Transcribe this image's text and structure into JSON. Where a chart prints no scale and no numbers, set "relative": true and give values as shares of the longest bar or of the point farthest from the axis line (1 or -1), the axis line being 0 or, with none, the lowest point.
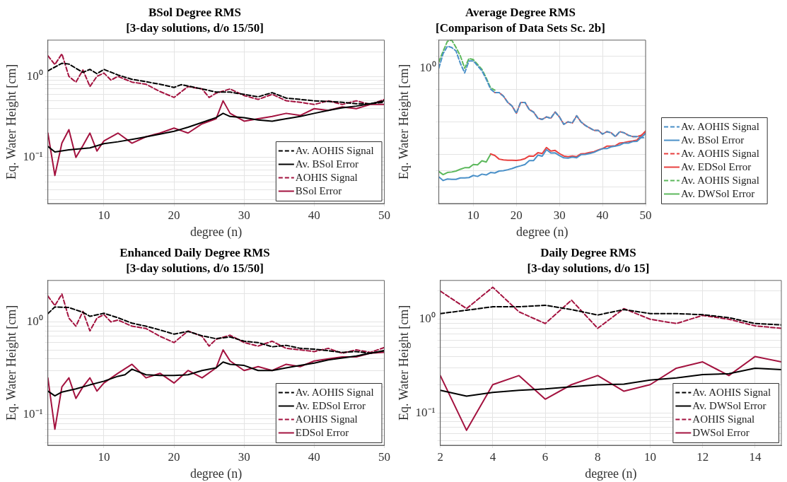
{
  "chart_data": [
    {
      "type": "line",
      "title": "BSol Degree RMS",
      "subtitle": "[3-day solutions, d/o 15/50]",
      "xlabel": "degree (n)",
      "ylabel": "Eq. Water Height [cm]",
      "log": "y",
      "grid": true,
      "legend": "bottom right",
      "xlim": [
        2,
        50
      ],
      "xticks": [
        10,
        20,
        30,
        40,
        50
      ],
      "ylim": [
        0.027,
        2.8
      ],
      "yticks": [
        {
          "value": 0.03,
          "label": null
        },
        {
          "value": 0.04,
          "label": null
        },
        {
          "value": 0.05,
          "label": null
        },
        {
          "value": 0.06,
          "label": null
        },
        {
          "value": 0.07,
          "label": null
        },
        {
          "value": 0.08,
          "label": null
        },
        {
          "value": 0.09,
          "label": null
        },
        {
          "value": 0.1,
          "label": "10⁻¹"
        },
        {
          "value": 0.2,
          "label": null
        },
        {
          "value": 0.3,
          "label": null
        },
        {
          "value": 0.4,
          "label": null
        },
        {
          "value": 0.5,
          "label": null
        },
        {
          "value": 0.6,
          "label": null
        },
        {
          "value": 0.7,
          "label": null
        },
        {
          "value": 0.8,
          "label": null
        },
        {
          "value": 0.9,
          "label": null
        },
        {
          "value": 1,
          "label": "10⁰"
        },
        {
          "value": 2,
          "label": null
        }
      ],
      "series": [
        {
          "name": "Av. AOHIS Signal",
          "color": "#000000",
          "line_style": "dashed",
          "x": [
            2,
            4,
            5,
            6,
            7,
            8,
            9,
            10,
            12,
            14,
            16,
            18,
            20,
            21,
            22,
            24,
            26,
            28,
            30,
            32,
            34,
            36,
            38,
            40,
            42,
            44,
            46,
            48,
            50
          ],
          "values": [
            1.17,
            1.45,
            1.42,
            1.26,
            1.12,
            1.22,
            1.08,
            1.22,
            1.04,
            0.92,
            0.86,
            0.8,
            0.73,
            0.79,
            0.76,
            0.7,
            0.64,
            0.64,
            0.6,
            0.56,
            0.63,
            0.54,
            0.52,
            0.5,
            0.49,
            0.48,
            0.46,
            0.46,
            0.48
          ]
        },
        {
          "name": "Av. BSol Error",
          "color": "#000000",
          "line_style": "solid",
          "x": [
            2,
            3,
            5,
            8,
            10,
            12,
            15,
            18,
            20,
            22,
            24,
            26,
            27,
            28,
            30,
            32,
            34,
            36,
            38,
            40,
            42,
            44,
            46,
            48,
            50
          ],
          "values": [
            0.137,
            0.117,
            0.124,
            0.131,
            0.148,
            0.156,
            0.173,
            0.194,
            0.21,
            0.236,
            0.27,
            0.31,
            0.35,
            0.32,
            0.31,
            0.29,
            0.28,
            0.3,
            0.32,
            0.35,
            0.38,
            0.41,
            0.43,
            0.46,
            0.5
          ]
        },
        {
          "name": "AOHIS Signal",
          "color": "#a3123f",
          "line_style": "dashed",
          "x": [
            2,
            3,
            4,
            5,
            6,
            7,
            8,
            9,
            10,
            11,
            12,
            14,
            16,
            18,
            20,
            22,
            24,
            25,
            26,
            28,
            30,
            32,
            34,
            36,
            38,
            40,
            42,
            44,
            46,
            48,
            50
          ],
          "values": [
            1.8,
            1.4,
            1.9,
            1.0,
            0.85,
            1.2,
            0.75,
            1.0,
            1.1,
            0.9,
            1.0,
            0.85,
            0.8,
            0.65,
            0.55,
            0.75,
            0.7,
            0.55,
            0.62,
            0.7,
            0.58,
            0.52,
            0.6,
            0.5,
            0.48,
            0.45,
            0.5,
            0.45,
            0.5,
            0.45,
            0.52
          ]
        },
        {
          "name": "BSol Error",
          "color": "#a3123f",
          "line_style": "solid",
          "x": [
            2,
            3,
            4,
            5,
            6,
            7,
            8,
            9,
            10,
            12,
            14,
            16,
            18,
            20,
            22,
            24,
            26,
            27,
            28,
            30,
            32,
            34,
            36,
            38,
            40,
            42,
            44,
            46,
            48,
            50
          ],
          "values": [
            0.2,
            0.06,
            0.15,
            0.22,
            0.1,
            0.14,
            0.2,
            0.12,
            0.16,
            0.2,
            0.15,
            0.18,
            0.2,
            0.23,
            0.2,
            0.26,
            0.3,
            0.5,
            0.35,
            0.28,
            0.3,
            0.32,
            0.35,
            0.33,
            0.4,
            0.38,
            0.42,
            0.4,
            0.45,
            0.45
          ]
        }
      ]
    },
    {
      "type": "line",
      "title": "Average Degree RMS",
      "subtitle": "[Comparison of Data Sets Sc. 2b]",
      "xlabel": "degree (n)",
      "ylabel": "Eq. Water Height [cm]",
      "grid": true,
      "legend": "right",
      "relative": true,
      "annotations": [
        "10⁰"
      ],
      "xlim": [
        2,
        50
      ],
      "xticks": [
        10,
        20,
        30,
        40,
        50
      ],
      "series": [
        {
          "name": "Av. AOHIS Signal",
          "color": "#4a90c8",
          "line_style": "dashed",
          "x": [
            2,
            3,
            4,
            5,
            6,
            7,
            8,
            9,
            10,
            11,
            12,
            13,
            14,
            15,
            16,
            17,
            18,
            19,
            20,
            21,
            22,
            23,
            24,
            25,
            26,
            27,
            28,
            29,
            30,
            31,
            32,
            33,
            34,
            35,
            36,
            37,
            38,
            39,
            40,
            41,
            42,
            43,
            44,
            45,
            46,
            47,
            48,
            49,
            50
          ],
          "values": [
            0.828,
            0.918,
            0.963,
            0.955,
            0.933,
            0.858,
            0.799,
            0.873,
            0.873,
            0.843,
            0.813,
            0.761,
            0.701,
            0.679,
            0.679,
            0.657,
            0.619,
            0.597,
            0.552,
            0.619,
            0.619,
            0.575,
            0.56,
            0.522,
            0.515,
            0.53,
            0.522,
            0.56,
            0.53,
            0.485,
            0.5,
            0.493,
            0.537,
            0.5,
            0.478,
            0.463,
            0.448,
            0.448,
            0.425,
            0.44,
            0.433,
            0.41,
            0.44,
            0.433,
            0.418,
            0.41,
            0.41,
            0.403,
            0.403
          ]
        },
        {
          "name": "Av. BSol Error",
          "color": "#4a90c8",
          "line_style": "solid",
          "x": [
            2,
            3,
            4,
            5,
            6,
            7,
            8,
            9,
            10,
            11,
            12,
            13,
            14,
            15,
            16,
            17,
            18,
            19,
            20,
            21,
            22,
            23,
            24,
            25,
            26,
            27,
            28,
            29,
            30,
            31,
            32,
            33,
            34,
            35,
            36,
            37,
            38,
            39,
            40,
            41,
            42,
            43,
            44,
            45,
            46,
            47,
            48,
            49,
            50
          ],
          "values": [
            0.163,
            0.141,
            0.15,
            0.148,
            0.148,
            0.157,
            0.157,
            0.159,
            0.172,
            0.166,
            0.18,
            0.175,
            0.19,
            0.187,
            0.199,
            0.201,
            0.207,
            0.214,
            0.224,
            0.231,
            0.239,
            0.263,
            0.263,
            0.296,
            0.29,
            0.33,
            0.309,
            0.31,
            0.294,
            0.28,
            0.278,
            0.284,
            0.28,
            0.299,
            0.301,
            0.306,
            0.313,
            0.325,
            0.336,
            0.336,
            0.347,
            0.351,
            0.358,
            0.37,
            0.37,
            0.379,
            0.381,
            0.404,
            0.429
          ]
        },
        {
          "name": "Av. AOHIS Signal",
          "color": "#e8403f",
          "line_style": "dashed",
          "x": [
            15,
            16,
            17,
            18,
            19,
            20,
            21,
            22,
            23,
            24,
            25,
            26,
            27,
            28,
            29,
            30,
            31,
            32,
            33,
            34,
            35,
            36,
            37,
            38,
            39,
            40,
            41,
            42,
            43,
            44,
            45,
            46,
            47,
            48,
            49,
            50
          ],
          "values": [
            0.679,
            0.679,
            0.657,
            0.619,
            0.597,
            0.552,
            0.619,
            0.619,
            0.575,
            0.56,
            0.522,
            0.515,
            0.53,
            0.522,
            0.56,
            0.53,
            0.485,
            0.5,
            0.493,
            0.537,
            0.5,
            0.478,
            0.463,
            0.448,
            0.448,
            0.425,
            0.44,
            0.433,
            0.41,
            0.44,
            0.433,
            0.418,
            0.41,
            0.41,
            0.418,
            0.44
          ]
        },
        {
          "name": "Av. EDSol Error",
          "color": "#e8403f",
          "line_style": "solid",
          "x": [
            14,
            15,
            16,
            17,
            18,
            19,
            20,
            21,
            22,
            23,
            24,
            25,
            26,
            27,
            28,
            29,
            30,
            31,
            32,
            33,
            34,
            35,
            36,
            37,
            38,
            39,
            40,
            41,
            42,
            43,
            44,
            45,
            46,
            47,
            48,
            49,
            50
          ],
          "values": [
            0.304,
            0.294,
            0.272,
            0.267,
            0.265,
            0.265,
            0.264,
            0.267,
            0.275,
            0.291,
            0.29,
            0.311,
            0.306,
            0.343,
            0.321,
            0.325,
            0.306,
            0.291,
            0.287,
            0.291,
            0.287,
            0.304,
            0.306,
            0.313,
            0.317,
            0.328,
            0.336,
            0.351,
            0.351,
            0.354,
            0.37,
            0.373,
            0.379,
            0.383,
            0.388,
            0.416,
            0.444
          ]
        },
        {
          "name": "Av. AOHIS Signal",
          "color": "#5cb85c",
          "line_style": "dashed",
          "x": [
            2,
            3,
            4,
            5,
            6,
            7,
            8,
            9,
            10,
            11,
            12,
            13,
            14,
            15
          ],
          "values": [
            0.866,
            0.933,
            0.993,
            1,
            0.955,
            0.903,
            0.828,
            0.888,
            0.881,
            0.851,
            0.821,
            0.769,
            0.709,
            0.694
          ]
        },
        {
          "name": "Av. DWSol Error",
          "color": "#5cb85c",
          "line_style": "solid",
          "x": [
            2,
            3,
            4,
            5,
            6,
            7,
            8,
            9,
            10,
            11,
            12,
            13,
            14
          ],
          "values": [
            0.196,
            0.177,
            0.19,
            0.193,
            0.199,
            0.21,
            0.219,
            0.219,
            0.239,
            0.237,
            0.262,
            0.254,
            0.301
          ]
        }
      ]
    },
    {
      "type": "line",
      "title": "Enhanced Daily Degree RMS",
      "subtitle": "[3-day solutions, d/o 15/50]",
      "xlabel": "degree (n)",
      "ylabel": "Eq. Water Height [cm]",
      "log": "y",
      "grid": true,
      "legend": "bottom right",
      "xlim": [
        2,
        50
      ],
      "xticks": [
        10,
        20,
        30,
        40,
        50
      ],
      "ylim": [
        0.047,
        2.8
      ],
      "yticks": [
        {
          "value": 0.05,
          "label": null
        },
        {
          "value": 0.06,
          "label": null
        },
        {
          "value": 0.07,
          "label": null
        },
        {
          "value": 0.08,
          "label": null
        },
        {
          "value": 0.09,
          "label": null
        },
        {
          "value": 0.1,
          "label": "10⁻¹"
        },
        {
          "value": 0.2,
          "label": null
        },
        {
          "value": 0.3,
          "label": null
        },
        {
          "value": 0.4,
          "label": null
        },
        {
          "value": 0.5,
          "label": null
        },
        {
          "value": 0.6,
          "label": null
        },
        {
          "value": 0.7,
          "label": null
        },
        {
          "value": 0.8,
          "label": null
        },
        {
          "value": 0.9,
          "label": null
        },
        {
          "value": 1,
          "label": "10⁰"
        },
        {
          "value": 2,
          "label": null
        }
      ],
      "series": [
        {
          "name": "Av. AOHIS Signal",
          "color": "#000000",
          "line_style": "dashed",
          "x": [
            2,
            3,
            5,
            7,
            8,
            10,
            12,
            14,
            16,
            18,
            20,
            22,
            24,
            26,
            28,
            30,
            32,
            34,
            36,
            38,
            40,
            42,
            44,
            46,
            48,
            50
          ],
          "values": [
            1.23,
            1.45,
            1.43,
            1.27,
            1.15,
            1.24,
            1.11,
            0.97,
            0.9,
            0.82,
            0.74,
            0.79,
            0.71,
            0.66,
            0.69,
            0.62,
            0.6,
            0.54,
            0.56,
            0.52,
            0.51,
            0.49,
            0.47,
            0.48,
            0.46,
            0.49
          ]
        },
        {
          "name": "Av. EDSol Error",
          "color": "#000000",
          "line_style": "solid",
          "x": [
            2,
            3,
            4,
            6,
            8,
            10,
            12,
            13,
            14,
            16,
            18,
            20,
            22,
            24,
            26,
            27,
            28,
            30,
            32,
            34,
            36,
            38,
            40,
            42,
            44,
            46,
            48,
            50
          ],
          "values": [
            0.18,
            0.16,
            0.176,
            0.19,
            0.21,
            0.23,
            0.26,
            0.27,
            0.31,
            0.27,
            0.265,
            0.265,
            0.27,
            0.3,
            0.32,
            0.37,
            0.35,
            0.34,
            0.3,
            0.3,
            0.32,
            0.34,
            0.36,
            0.39,
            0.41,
            0.43,
            0.46,
            0.49
          ]
        },
        {
          "name": "AOHIS Signal",
          "color": "#a3123f",
          "line_style": "dashed",
          "x": [
            2,
            3,
            4,
            5,
            6,
            7,
            8,
            9,
            10,
            11,
            12,
            14,
            16,
            18,
            20,
            22,
            24,
            25,
            26,
            28,
            30,
            32,
            34,
            36,
            38,
            40,
            42,
            44,
            46,
            48,
            50
          ],
          "values": [
            1.9,
            1.5,
            2.0,
            1.1,
            0.9,
            1.3,
            0.8,
            1.1,
            1.2,
            1.0,
            1.05,
            0.9,
            0.85,
            0.7,
            0.6,
            0.8,
            0.7,
            0.55,
            0.65,
            0.72,
            0.6,
            0.55,
            0.62,
            0.52,
            0.5,
            0.48,
            0.52,
            0.46,
            0.5,
            0.47,
            0.53
          ]
        },
        {
          "name": "EDSol Error",
          "color": "#a3123f",
          "line_style": "solid",
          "x": [
            2,
            3,
            4,
            5,
            6,
            7,
            8,
            9,
            10,
            12,
            14,
            16,
            18,
            20,
            22,
            24,
            26,
            27,
            28,
            30,
            32,
            34,
            36,
            38,
            40,
            42,
            44,
            46,
            48,
            50
          ],
          "values": [
            0.25,
            0.07,
            0.2,
            0.25,
            0.15,
            0.2,
            0.25,
            0.18,
            0.22,
            0.28,
            0.35,
            0.25,
            0.28,
            0.22,
            0.3,
            0.25,
            0.32,
            0.5,
            0.38,
            0.3,
            0.33,
            0.3,
            0.35,
            0.33,
            0.38,
            0.4,
            0.42,
            0.42,
            0.46,
            0.47
          ]
        }
      ]
    },
    {
      "type": "line",
      "title": "Daily Degree RMS",
      "subtitle": "[3-day solutions, d/o 15]",
      "xlabel": "degree (n)",
      "ylabel": "Eq. Water Height [cm]",
      "log": "y",
      "grid": true,
      "legend": "bottom right",
      "xlim": [
        2,
        15
      ],
      "xticks": [
        2,
        4,
        6,
        8,
        10,
        12,
        14
      ],
      "ylim": [
        0.045,
        2.6
      ],
      "yticks": [
        {
          "value": 0.05,
          "label": null
        },
        {
          "value": 0.06,
          "label": null
        },
        {
          "value": 0.07,
          "label": null
        },
        {
          "value": 0.08,
          "label": null
        },
        {
          "value": 0.09,
          "label": null
        },
        {
          "value": 0.1,
          "label": "10⁻¹"
        },
        {
          "value": 0.2,
          "label": null
        },
        {
          "value": 0.3,
          "label": null
        },
        {
          "value": 0.4,
          "label": null
        },
        {
          "value": 0.5,
          "label": null
        },
        {
          "value": 0.6,
          "label": null
        },
        {
          "value": 0.7,
          "label": null
        },
        {
          "value": 0.8,
          "label": null
        },
        {
          "value": 0.9,
          "label": null
        },
        {
          "value": 1,
          "label": "10⁰"
        },
        {
          "value": 2,
          "label": null
        }
      ],
      "series": [
        {
          "name": "Av. AOHIS Signal",
          "color": "#000000",
          "line_style": "dashed",
          "x": [
            2,
            3,
            4,
            5,
            6,
            7,
            8,
            9,
            10,
            11,
            12,
            13,
            14,
            15
          ],
          "values": [
            1.15,
            1.25,
            1.36,
            1.36,
            1.41,
            1.27,
            1.11,
            1.27,
            1.15,
            1.15,
            1.12,
            1.04,
            0.9,
            0.87
          ]
        },
        {
          "name": "Av. DWSol Error",
          "color": "#000000",
          "line_style": "solid",
          "x": [
            2,
            3,
            4,
            5,
            6,
            7,
            8,
            9,
            10,
            11,
            12,
            13,
            14,
            15
          ],
          "values": [
            0.174,
            0.151,
            0.165,
            0.174,
            0.18,
            0.19,
            0.199,
            0.203,
            0.224,
            0.236,
            0.256,
            0.262,
            0.3,
            0.29
          ]
        },
        {
          "name": "AOHIS Signal",
          "color": "#a3123f",
          "line_style": "dashed",
          "x": [
            2,
            3,
            4,
            5,
            6,
            7,
            8,
            9,
            10,
            11,
            12,
            13,
            14,
            15
          ],
          "values": [
            2.0,
            1.3,
            2.2,
            1.2,
            0.9,
            1.6,
            0.8,
            1.3,
            1.0,
            0.9,
            1.1,
            1.0,
            0.85,
            0.8
          ]
        },
        {
          "name": "DWSol Error",
          "color": "#a3123f",
          "line_style": "solid",
          "x": [
            2,
            3,
            4,
            5,
            6,
            7,
            8,
            9,
            10,
            11,
            12,
            13,
            14,
            15
          ],
          "values": [
            0.25,
            0.065,
            0.2,
            0.25,
            0.14,
            0.2,
            0.25,
            0.17,
            0.2,
            0.3,
            0.35,
            0.25,
            0.4,
            0.35
          ]
        }
      ]
    }
  ]
}
